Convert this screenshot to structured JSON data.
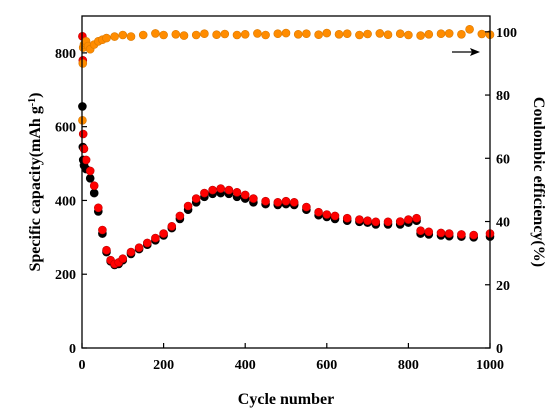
{
  "chart_data": {
    "type": "scatter",
    "xlabel": "Cycle number",
    "ylabel_left": "Specific capacity(mAh g⁻¹)",
    "ylabel_left_main": "Specific capacity(mAh g",
    "ylabel_left_sup": "-1",
    "ylabel_left_close": ")",
    "ylabel_right": "Coulombic efficiency(%)",
    "xlim": [
      0,
      1000
    ],
    "ylim_left": [
      0,
      900
    ],
    "ylim_right": [
      0,
      105
    ],
    "x_ticks": [
      0,
      200,
      400,
      600,
      800,
      1000
    ],
    "y_left_ticks": [
      0,
      200,
      400,
      600,
      800
    ],
    "y_right_ticks": [
      0,
      20,
      40,
      60,
      80,
      100
    ],
    "grid": false,
    "annotations": [
      {
        "type": "arrow",
        "direction": "right",
        "points_to": "right axis",
        "near_value": 97
      }
    ],
    "series": [
      {
        "axis": "left",
        "color": "#000000",
        "x": [
          1,
          2,
          3,
          5,
          10,
          20,
          30,
          40,
          50,
          60,
          70,
          80,
          90,
          100,
          120,
          140,
          160,
          180,
          200,
          220,
          240,
          260,
          280,
          300,
          320,
          340,
          360,
          380,
          400,
          420,
          450,
          480,
          500,
          520,
          550,
          580,
          600,
          620,
          650,
          680,
          700,
          720,
          750,
          780,
          800,
          820,
          830,
          850,
          880,
          900,
          930,
          960,
          1000
        ],
        "values": [
          655,
          545,
          510,
          495,
          485,
          460,
          420,
          370,
          310,
          260,
          235,
          225,
          228,
          238,
          255,
          268,
          280,
          292,
          305,
          325,
          350,
          375,
          395,
          410,
          418,
          420,
          418,
          410,
          405,
          395,
          390,
          388,
          390,
          388,
          375,
          360,
          355,
          350,
          345,
          342,
          340,
          335,
          335,
          335,
          340,
          345,
          310,
          308,
          305,
          303,
          302,
          300,
          302
        ]
      },
      {
        "axis": "left",
        "color": "#ff0000",
        "x": [
          1,
          2,
          3,
          5,
          10,
          20,
          30,
          40,
          50,
          60,
          70,
          80,
          90,
          100,
          120,
          140,
          160,
          180,
          200,
          220,
          240,
          260,
          280,
          300,
          320,
          340,
          360,
          380,
          400,
          420,
          450,
          480,
          500,
          520,
          550,
          580,
          600,
          620,
          650,
          680,
          700,
          720,
          750,
          780,
          800,
          820,
          830,
          850,
          880,
          900,
          930,
          960,
          1000
        ],
        "values": [
          845,
          780,
          580,
          540,
          510,
          480,
          440,
          380,
          320,
          265,
          238,
          228,
          232,
          242,
          260,
          272,
          285,
          298,
          310,
          330,
          358,
          385,
          405,
          420,
          428,
          432,
          428,
          422,
          415,
          405,
          398,
          395,
          398,
          395,
          382,
          368,
          362,
          358,
          352,
          348,
          345,
          342,
          342,
          343,
          348,
          352,
          318,
          315,
          312,
          310,
          308,
          306,
          310
        ]
      },
      {
        "axis": "right",
        "color": "#ff8c00",
        "x": [
          1,
          2,
          3,
          5,
          8,
          10,
          15,
          20,
          30,
          40,
          50,
          60,
          80,
          100,
          120,
          150,
          180,
          200,
          230,
          250,
          280,
          300,
          330,
          350,
          380,
          400,
          430,
          450,
          480,
          500,
          530,
          550,
          580,
          600,
          630,
          650,
          680,
          700,
          730,
          750,
          780,
          800,
          830,
          850,
          880,
          900,
          930,
          950,
          980,
          1000
        ],
        "values": [
          72,
          90,
          95,
          96,
          96.5,
          97,
          95.5,
          94.5,
          96,
          97,
          97.5,
          98,
          98.5,
          99,
          98.5,
          99,
          99.5,
          99,
          99.2,
          98.8,
          99,
          99.4,
          99.1,
          99.3,
          99,
          99.2,
          99.5,
          99,
          99.4,
          99.6,
          99.2,
          99.4,
          99.1,
          99.6,
          99.2,
          99.4,
          99,
          99.3,
          99.5,
          99.1,
          99.4,
          99,
          98.8,
          99.2,
          99.4,
          99.5,
          99.2,
          100.8,
          99.3,
          99.1
        ]
      }
    ]
  }
}
